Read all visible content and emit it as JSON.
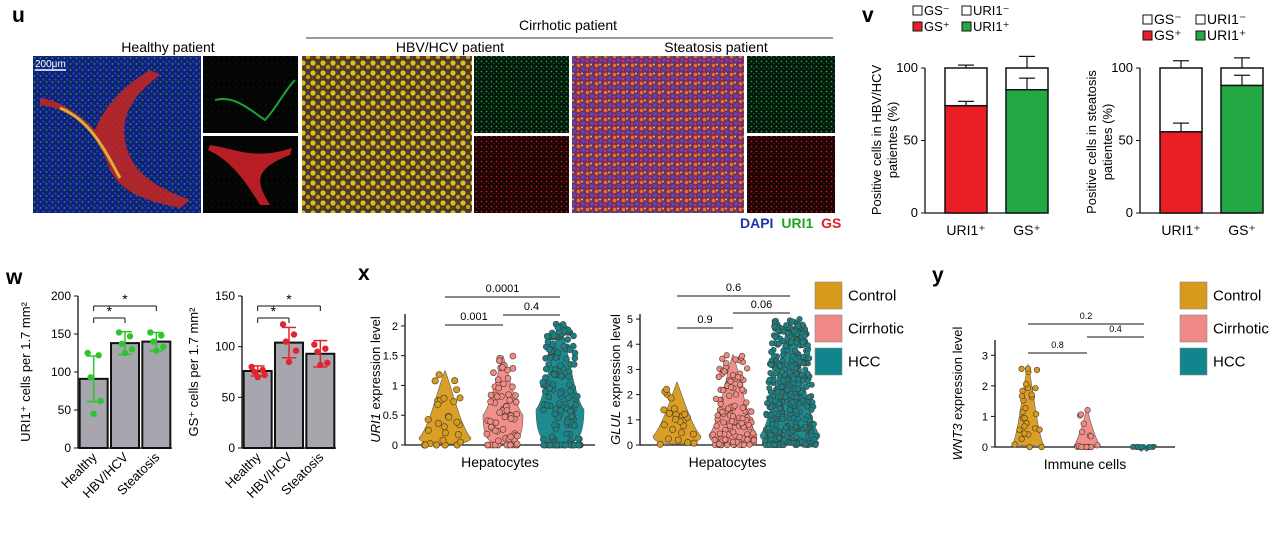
{
  "panel_letters": {
    "u": "u",
    "v": "v",
    "w": "w",
    "x": "x",
    "y": "y"
  },
  "panel_u": {
    "group_header": "Cirrhotic patient",
    "healthy_label": "Healthy patient",
    "hbv_label": "HBV/HCV patient",
    "steatosis_label": "Steatosis patient",
    "scale_bar": "200μm",
    "stain_dapi": "DAPI",
    "stain_uri1": "URI1",
    "stain_gs": "GS",
    "colors": {
      "dapi": "#2233aa",
      "uri1": "#1ea61e",
      "gs": "#e0202a"
    }
  },
  "legend_v": {
    "gs_minus": "GS⁻",
    "uri1_minus": "URI1⁻",
    "gs_plus": "GS⁺",
    "uri1_plus": "URI1⁺"
  },
  "legend_x": {
    "items": [
      "Control",
      "Cirrhotic",
      "HCC"
    ]
  },
  "legend_y": {
    "items": [
      "Control",
      "Cirrhotic",
      "HCC"
    ]
  },
  "colors": {
    "control": "#d89a1c",
    "cirrhotic": "#f08a86",
    "hcc": "#11858d",
    "green": "#23a844",
    "red": "#ea1e25",
    "gray": "#a7a5ad",
    "green_pt": "#2dc52d",
    "red_pt": "#e0252f"
  },
  "chart_data": [
    {
      "id": "v1",
      "type": "bar",
      "ylabel": "Positive cells in HBV/HCV patientes (%)",
      "categories": [
        "URI1⁺",
        "GS⁺"
      ],
      "ylim": [
        0,
        100
      ],
      "yticks": [
        0,
        50,
        100
      ],
      "series": [
        {
          "name": "GS⁺",
          "values": [
            74,
            null
          ]
        },
        {
          "name": "GS⁻",
          "values": [
            26,
            null
          ]
        },
        {
          "name": "URI1⁺",
          "values": [
            null,
            85
          ]
        },
        {
          "name": "URI1⁻",
          "values": [
            null,
            15
          ]
        }
      ],
      "errors": {
        "lower_top": [
          77,
          93
        ],
        "total_top": [
          102,
          108
        ]
      }
    },
    {
      "id": "v2",
      "type": "bar",
      "ylabel": "Positive cells in steatosis patientes (%)",
      "categories": [
        "URI1⁺",
        "GS⁺"
      ],
      "ylim": [
        0,
        100
      ],
      "yticks": [
        0,
        50,
        100
      ],
      "series": [
        {
          "name": "GS⁺",
          "values": [
            56,
            null
          ]
        },
        {
          "name": "GS⁻",
          "values": [
            44,
            null
          ]
        },
        {
          "name": "URI1⁺",
          "values": [
            null,
            88
          ]
        },
        {
          "name": "URI1⁻",
          "values": [
            null,
            12
          ]
        }
      ],
      "errors": {
        "lower_top": [
          62,
          95
        ],
        "total_top": [
          105,
          107
        ]
      }
    },
    {
      "id": "w1",
      "type": "bar",
      "ylabel": "URI1⁺ cells per 1.7 mm²",
      "categories": [
        "Healthy",
        "HBV/HCV",
        "Steatosis"
      ],
      "values": [
        91,
        138,
        140
      ],
      "err_up": [
        30,
        15,
        12
      ],
      "err_down": [
        30,
        15,
        12
      ],
      "points": [
        [
          125,
          122,
          93,
          62,
          45
        ],
        [
          152,
          147,
          137,
          130,
          125
        ],
        [
          152,
          148,
          140,
          133,
          128
        ]
      ],
      "ylim": [
        0,
        200
      ],
      "yticks": [
        0,
        50,
        100,
        150,
        200
      ],
      "significance": [
        {
          "from": 0,
          "to": 1,
          "label": "*"
        },
        {
          "from": 0,
          "to": 2,
          "label": "*"
        }
      ]
    },
    {
      "id": "w2",
      "type": "bar",
      "ylabel": "GS⁺ cells per 1.7 mm²",
      "categories": [
        "Healthy",
        "HBV/HCV",
        "Steatosis"
      ],
      "values": [
        76,
        104,
        93
      ],
      "err_up": [
        5,
        15,
        13
      ],
      "err_down": [
        5,
        15,
        13
      ],
      "points": [
        [
          80,
          77,
          75,
          72,
          70
        ],
        [
          122,
          112,
          105,
          96,
          85
        ],
        [
          102,
          98,
          95,
          84,
          82
        ]
      ],
      "ylim": [
        0,
        150
      ],
      "yticks": [
        0,
        50,
        100,
        150
      ],
      "significance": [
        {
          "from": 0,
          "to": 1,
          "label": "*"
        },
        {
          "from": 0,
          "to": 2,
          "label": "*"
        }
      ]
    },
    {
      "id": "x1",
      "type": "scatter",
      "xlabel": "Hepatocytes",
      "ylabel": "URI1 expression level",
      "groups": [
        "Control",
        "Cirrhotic",
        "HCC"
      ],
      "ylim": [
        0,
        2.2
      ],
      "yticks": [
        0,
        0.5,
        1,
        1.5,
        2
      ],
      "comparisons": [
        {
          "from": 0,
          "to": 1,
          "label": "0.001"
        },
        {
          "from": 1,
          "to": 2,
          "label": "0.4"
        },
        {
          "from": 0,
          "to": 2,
          "label": "0.0001"
        }
      ]
    },
    {
      "id": "x2",
      "type": "scatter",
      "xlabel": "Hepatocytes",
      "ylabel": "GLUL expression level",
      "groups": [
        "Control",
        "Cirrhotic",
        "HCC"
      ],
      "ylim": [
        0,
        5.2
      ],
      "yticks": [
        0,
        1,
        2,
        3,
        4,
        5
      ],
      "comparisons": [
        {
          "from": 0,
          "to": 1,
          "label": "0.9"
        },
        {
          "from": 1,
          "to": 2,
          "label": "0.06"
        },
        {
          "from": 0,
          "to": 2,
          "label": "0.6"
        }
      ]
    },
    {
      "id": "y1",
      "type": "scatter",
      "xlabel": "Immune cells",
      "ylabel": "WNT3 expression level",
      "groups": [
        "Control",
        "Cirrhotic",
        "HCC"
      ],
      "ylim": [
        0,
        3.5
      ],
      "yticks": [
        0,
        1,
        2,
        3
      ],
      "comparisons": [
        {
          "from": 0,
          "to": 1,
          "label": "0.8"
        },
        {
          "from": 1,
          "to": 2,
          "label": "0.4"
        },
        {
          "from": 0,
          "to": 2,
          "label": "0.2"
        }
      ]
    }
  ]
}
